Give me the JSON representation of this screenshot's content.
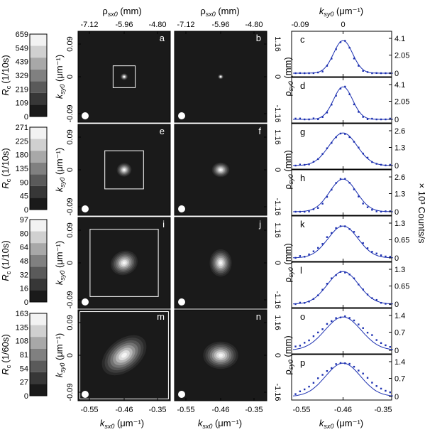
{
  "chart_data": {
    "type": "contour",
    "top_axis": {
      "label_rho": "ρ",
      "label_rho_sub": "sx0",
      "label_rho_unit": " (mm)",
      "ticks": [
        "-7.12",
        "-5.96",
        "-4.80"
      ],
      "label_k": "k",
      "label_k_sub": "sy0",
      "label_k_unit": " (μm⁻¹)",
      "k_ticks": [
        "-0.09",
        "0"
      ]
    },
    "bottom_axis": {
      "label_k": "k",
      "label_k_sub": "sx0",
      "label_k_unit": " (μm⁻¹)",
      "ticks": [
        "-0.55",
        "-0.46",
        "-0.35"
      ]
    },
    "left_axis": {
      "label_k": "k",
      "label_k_sub": "sy0",
      "label_k_unit": " (μm⁻¹)",
      "ticks": [
        "0.09",
        "0",
        "-0.09"
      ]
    },
    "mid_axis": {
      "label_rho": "ρ",
      "label_rho_sub": "sy0",
      "label_rho_unit": " (mm)",
      "ticks": [
        "1.16",
        "0",
        "-1.16"
      ]
    },
    "right_label": "× 10³ Counts/s",
    "colorbars": [
      {
        "label": "R",
        "label_sub": "c",
        "unit": "(1/10s)",
        "ticks": [
          "659",
          "549",
          "439",
          "329",
          "219",
          "109",
          "0"
        ]
      },
      {
        "label": "R",
        "label_sub": "c",
        "unit": "(1/10s)",
        "ticks": [
          "271",
          "225",
          "180",
          "135",
          "90",
          "45",
          "0"
        ]
      },
      {
        "label": "R",
        "label_sub": "c",
        "unit": "(1/10s)",
        "ticks": [
          "97",
          "80",
          "64",
          "48",
          "32",
          "16",
          "0"
        ]
      },
      {
        "label": "R",
        "label_sub": "c",
        "unit": "(1/60s)",
        "ticks": [
          "163",
          "135",
          "108",
          "81",
          "54",
          "27",
          "0"
        ]
      }
    ],
    "colorbar_greys": [
      "#f2f2f2",
      "#d0d0d0",
      "#a8a8a8",
      "#808080",
      "#5a5a5a",
      "#373737",
      "#1a1a1a"
    ],
    "panels": [
      {
        "id": "a",
        "spot_k": 0.1,
        "spot_rx": 0.08,
        "spot_ry": 0.075,
        "box_k": 0.24,
        "tilt": 0,
        "noisy": true
      },
      {
        "id": "b",
        "spot_k": 0.1,
        "spot_rx": 0.06,
        "spot_ry": 0.055,
        "tilt": 0
      },
      {
        "id": "e",
        "spot_k": 0.1,
        "spot_rx": 0.16,
        "spot_ry": 0.15,
        "box_k": 0.42,
        "tilt": -10,
        "noisy": true
      },
      {
        "id": "f",
        "spot_k": 0.1,
        "spot_rx": 0.19,
        "spot_ry": 0.16,
        "tilt": 0
      },
      {
        "id": "i",
        "spot_k": 0.1,
        "spot_rx": 0.3,
        "spot_ry": 0.26,
        "box_k": 0.74,
        "tilt": -25,
        "noisy": true
      },
      {
        "id": "j",
        "spot_k": 0.1,
        "spot_rx": 0.24,
        "spot_ry": 0.3,
        "tilt": 0
      },
      {
        "id": "m",
        "spot_k": 0.1,
        "spot_rx": 0.55,
        "spot_ry": 0.35,
        "box_k": 0.96,
        "tilt": -38,
        "noisy": true
      },
      {
        "id": "n",
        "spot_k": 0.1,
        "spot_rx": 0.38,
        "spot_ry": 0.3,
        "tilt": 0
      }
    ],
    "profiles": [
      {
        "id": "c",
        "ticks": [
          "4.1",
          "2.05",
          "0"
        ],
        "width": 0.18,
        "fit_width": 0.19,
        "peak": 0.9
      },
      {
        "id": "d",
        "ticks": [
          "4.1",
          "2.05",
          "0"
        ],
        "width": 0.18,
        "fit_width": 0.19,
        "peak": 0.9
      },
      {
        "id": "g",
        "ticks": [
          "2.6",
          "1.3",
          "0"
        ],
        "width": 0.28,
        "fit_width": 0.28,
        "peak": 0.9
      },
      {
        "id": "h",
        "ticks": [
          "2.6",
          "1.3",
          "0"
        ],
        "width": 0.25,
        "fit_width": 0.27,
        "peak": 0.9
      },
      {
        "id": "k",
        "ticks": [
          "1.3",
          "0.65",
          "0"
        ],
        "width": 0.33,
        "fit_width": 0.3,
        "peak": 0.88
      },
      {
        "id": "l",
        "ticks": [
          "1.3",
          "0.65",
          "0"
        ],
        "width": 0.32,
        "fit_width": 0.31,
        "peak": 0.9
      },
      {
        "id": "o",
        "ticks": [
          "1.4",
          "0.7",
          "0"
        ],
        "width": 0.45,
        "fit_width": 0.36,
        "peak": 0.92
      },
      {
        "id": "p",
        "ticks": [
          "1.4",
          "0.7",
          "0"
        ],
        "width": 0.44,
        "fit_width": 0.35,
        "peak": 0.92
      }
    ]
  }
}
